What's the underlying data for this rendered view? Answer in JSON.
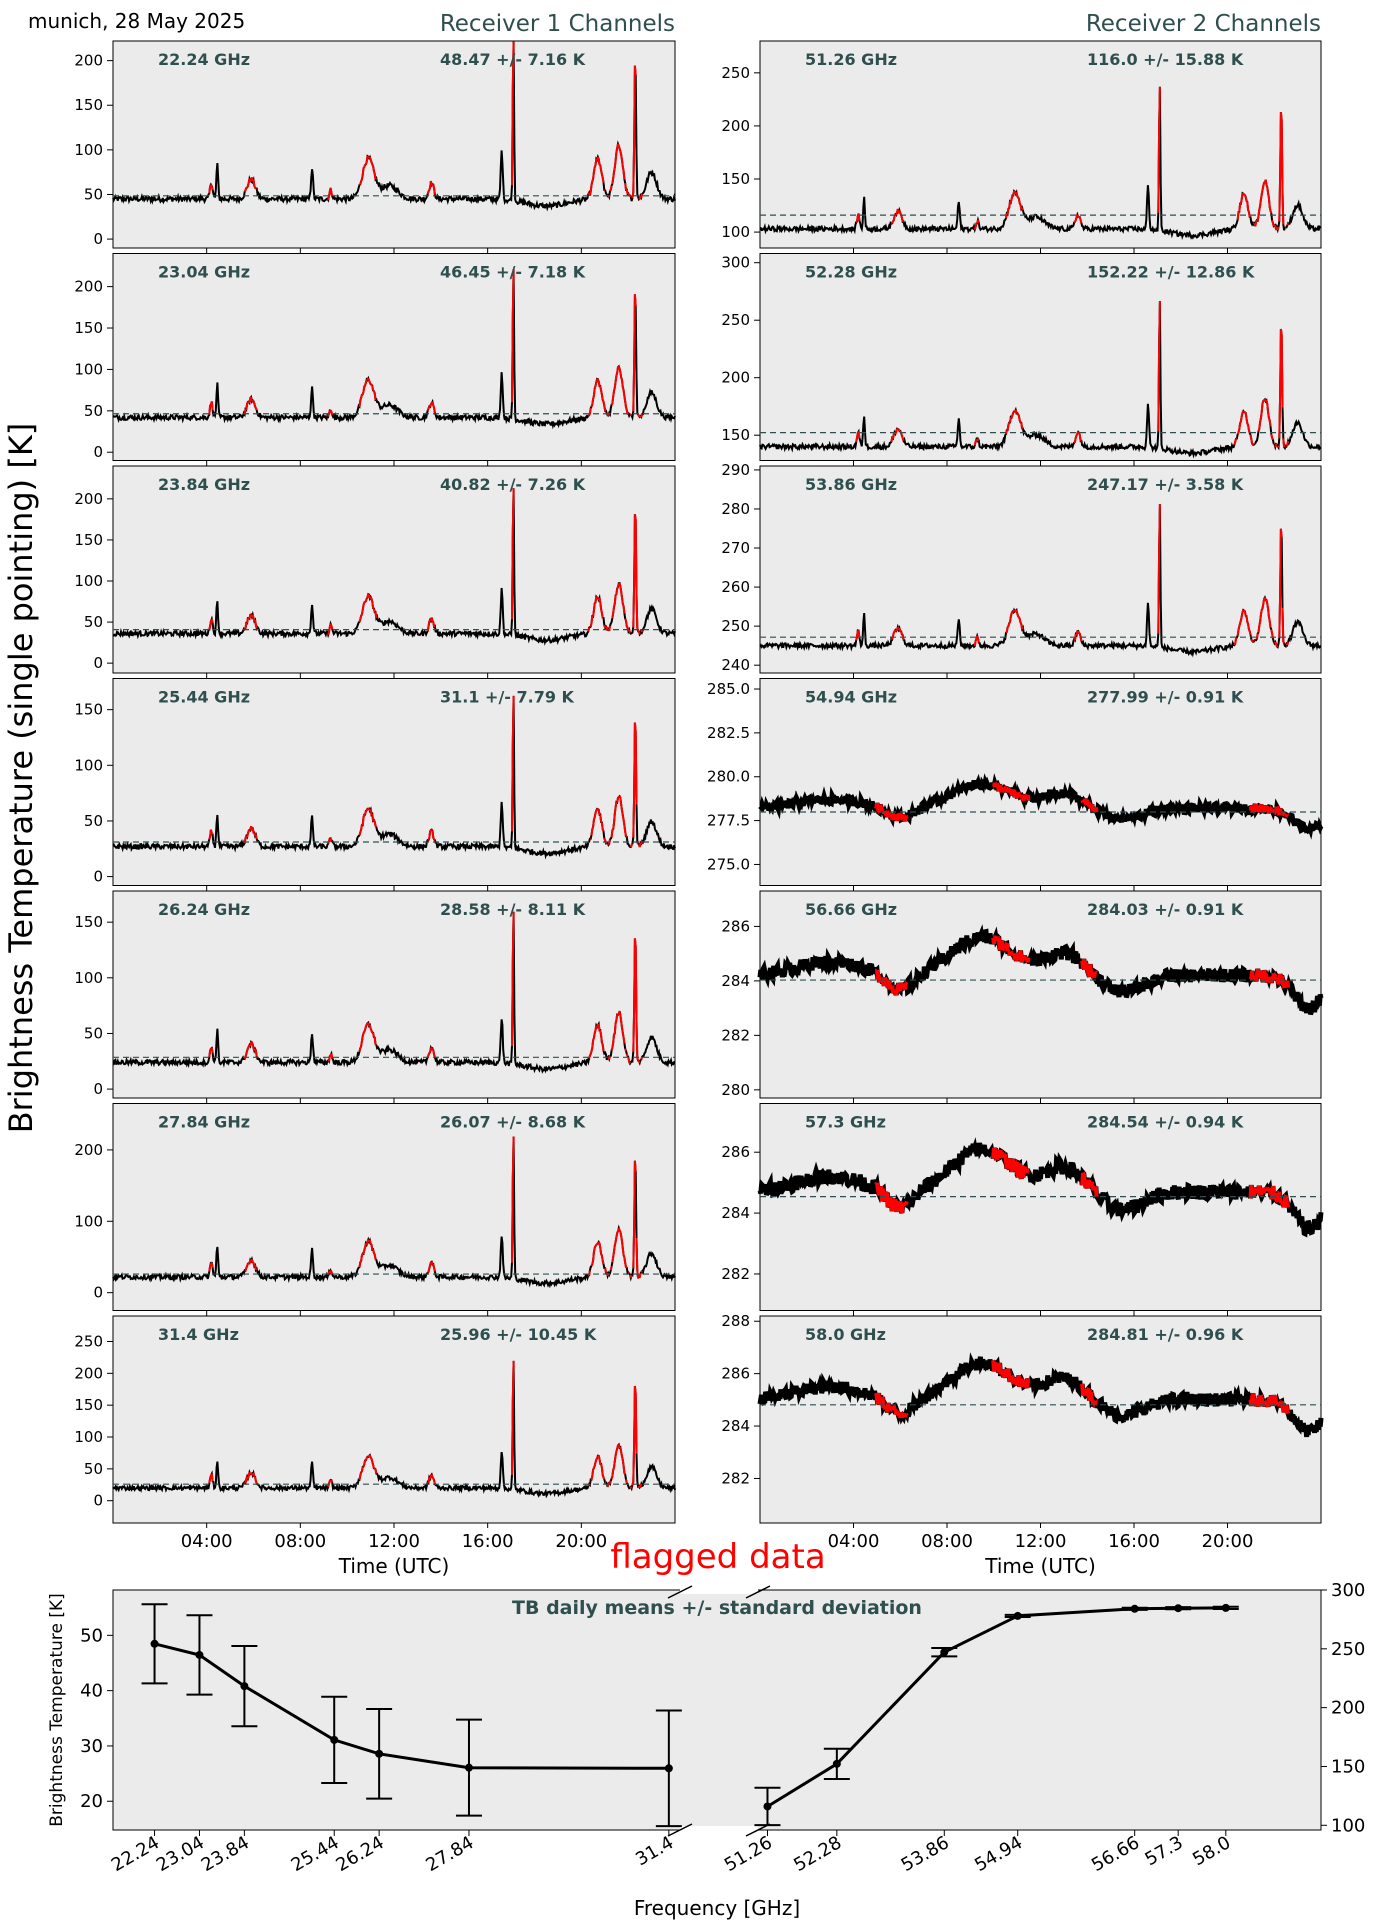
{
  "header": {
    "location_date": "munich, 28 May 2025",
    "receiver1_title": "Receiver 1 Channels",
    "receiver2_title": "Receiver 2 Channels",
    "ylabel": "Brightness Temperature (single pointing) [K]",
    "flagged_label": "flagged data"
  },
  "colors": {
    "panel_bg": "#ebebeb",
    "trace": "#000000",
    "flagged": "#ff0000",
    "annotation": "#2f4f4f",
    "mean_line": "#2f4f4f",
    "flagged_title": "#ff0000"
  },
  "chart_data": [
    {
      "type": "line",
      "title": "Receiver 1 Channels",
      "xlabel": "Time (UTC)",
      "x_ticks": [
        "04:00",
        "08:00",
        "12:00",
        "16:00",
        "20:00"
      ],
      "xlim_hours": [
        0,
        24
      ],
      "series": [
        {
          "name": "22.24 GHz",
          "annotation": "48.47 +/- 7.16 K",
          "mean": 48.47,
          "ylim": [
            -10,
            222
          ],
          "yticks": [
            "0",
            "50",
            "100",
            "150",
            "200"
          ],
          "ytick_values": [
            0,
            50,
            100,
            150,
            200
          ],
          "baseline": 45,
          "peak_scale": 1.0
        },
        {
          "name": "23.04 GHz",
          "annotation": "46.45 +/- 7.18 K",
          "mean": 46.45,
          "ylim": [
            -10,
            240
          ],
          "yticks": [
            "0",
            "50",
            "100",
            "150",
            "200"
          ],
          "ytick_values": [
            0,
            50,
            100,
            150,
            200
          ],
          "baseline": 42,
          "peak_scale": 1.0
        },
        {
          "name": "23.84 GHz",
          "annotation": "40.82 +/- 7.26 K",
          "mean": 40.82,
          "ylim": [
            -12,
            240
          ],
          "yticks": [
            "0",
            "50",
            "100",
            "150",
            "200"
          ],
          "ytick_values": [
            0,
            50,
            100,
            150,
            200
          ],
          "baseline": 36,
          "peak_scale": 1.0
        },
        {
          "name": "25.44 GHz",
          "annotation": "31.1 +/- 7.79 K",
          "mean": 31.1,
          "ylim": [
            -8,
            178
          ],
          "yticks": [
            "0",
            "50",
            "100",
            "150"
          ],
          "ytick_values": [
            0,
            50,
            100,
            150
          ],
          "baseline": 27,
          "peak_scale": 0.75
        },
        {
          "name": "26.24 GHz",
          "annotation": "28.58 +/- 8.11 K",
          "mean": 28.58,
          "ylim": [
            -8,
            178
          ],
          "yticks": [
            "0",
            "50",
            "100",
            "150"
          ],
          "ytick_values": [
            0,
            50,
            100,
            150
          ],
          "baseline": 24,
          "peak_scale": 0.75
        },
        {
          "name": "27.84 GHz",
          "annotation": "26.07 +/- 8.68 K",
          "mean": 26.07,
          "ylim": [
            -25,
            265
          ],
          "yticks": [
            "0",
            "100",
            "200"
          ],
          "ytick_values": [
            0,
            100,
            200
          ],
          "baseline": 22,
          "peak_scale": 1.1
        },
        {
          "name": "31.4 GHz",
          "annotation": "25.96 +/- 10.45 K",
          "mean": 25.96,
          "ylim": [
            -35,
            290
          ],
          "yticks": [
            "0",
            "50",
            "100",
            "150",
            "200",
            "250"
          ],
          "ytick_values": [
            0,
            50,
            100,
            150,
            200,
            250
          ],
          "baseline": 20,
          "peak_scale": 1.1
        }
      ]
    },
    {
      "type": "line",
      "title": "Receiver 2 Channels",
      "xlabel": "Time (UTC)",
      "x_ticks": [
        "04:00",
        "08:00",
        "12:00",
        "16:00",
        "20:00"
      ],
      "xlim_hours": [
        0,
        24
      ],
      "series": [
        {
          "name": "51.26 GHz",
          "annotation": "116.0 +/- 15.88 K",
          "mean": 116.0,
          "ylim": [
            85,
            280
          ],
          "yticks": [
            "100",
            "150",
            "200",
            "250"
          ],
          "ytick_values": [
            100,
            150,
            200,
            250
          ],
          "baseline": 103,
          "peak_scale": 0.75
        },
        {
          "name": "52.28 GHz",
          "annotation": "152.22 +/- 12.86 K",
          "mean": 152.22,
          "ylim": [
            128,
            308
          ],
          "yticks": [
            "150",
            "200",
            "250",
            "300"
          ],
          "ytick_values": [
            150,
            200,
            250,
            300
          ],
          "baseline": 140,
          "peak_scale": 0.7
        },
        {
          "name": "53.86 GHz",
          "annotation": "247.17 +/- 3.58 K",
          "mean": 247.17,
          "ylim": [
            238,
            291
          ],
          "yticks": [
            "240",
            "250",
            "260",
            "270",
            "280",
            "290"
          ],
          "ytick_values": [
            240,
            250,
            260,
            270,
            280,
            290
          ],
          "baseline": 245,
          "peak_scale": 0.2
        },
        {
          "name": "54.94 GHz",
          "annotation": "277.99 +/- 0.91 K",
          "mean": 277.99,
          "ylim": [
            273.8,
            285.6
          ],
          "yticks": [
            "275.0",
            "277.5",
            "280.0",
            "282.5",
            "285.0"
          ],
          "ytick_values": [
            275,
            277.5,
            280,
            282.5,
            285
          ],
          "baseline": 278.2,
          "peak_scale": 0.035
        },
        {
          "name": "56.66 GHz",
          "annotation": "284.03 +/- 0.91 K",
          "mean": 284.03,
          "ylim": [
            279.7,
            287.3
          ],
          "yticks": [
            "280",
            "282",
            "284",
            "286"
          ],
          "ytick_values": [
            280,
            282,
            284,
            286
          ],
          "baseline": 284.2,
          "peak_scale": 0.01
        },
        {
          "name": "57.3 GHz",
          "annotation": "284.54 +/- 0.94 K",
          "mean": 284.54,
          "ylim": [
            280.8,
            287.6
          ],
          "yticks": [
            "282",
            "284",
            "286"
          ],
          "ytick_values": [
            282,
            284,
            286
          ],
          "baseline": 284.7,
          "peak_scale": 0.01
        },
        {
          "name": "58.0 GHz",
          "annotation": "284.81 +/- 0.96 K",
          "mean": 284.81,
          "ylim": [
            280.3,
            288.2
          ],
          "yticks": [
            "282",
            "284",
            "286",
            "288"
          ],
          "ytick_values": [
            282,
            284,
            286,
            288
          ],
          "baseline": 285.0,
          "peak_scale": 0.01
        }
      ]
    },
    {
      "type": "line",
      "title": "TB daily means +/- standard deviation",
      "xlabel": "Frequency [GHz]",
      "ylabel_left": "Brightness Temperature [K]",
      "left": {
        "ylim": [
          14.8,
          58.2
        ],
        "yticks": [
          "20",
          "30",
          "40",
          "50"
        ],
        "ytick_values": [
          20,
          30,
          40,
          50
        ],
        "x": [
          22.24,
          23.04,
          23.84,
          25.44,
          26.24,
          27.84,
          31.4
        ],
        "x_labels": [
          "22.24",
          "23.04",
          "23.84",
          "25.44",
          "26.24",
          "27.84",
          "31.4"
        ],
        "y": [
          48.47,
          46.45,
          40.82,
          31.1,
          28.58,
          26.07,
          25.96
        ],
        "err": [
          7.16,
          7.18,
          7.26,
          7.79,
          8.11,
          8.68,
          10.45
        ]
      },
      "right": {
        "ylim": [
          96,
          300
        ],
        "yticks": [
          "100",
          "150",
          "200",
          "250",
          "300"
        ],
        "ytick_values": [
          100,
          150,
          200,
          250,
          300
        ],
        "x": [
          51.26,
          52.28,
          53.86,
          54.94,
          56.66,
          57.3,
          58.0
        ],
        "x_labels": [
          "51.26",
          "52.28",
          "53.86",
          "54.94",
          "56.66",
          "57.3",
          "58.0"
        ],
        "y": [
          116.0,
          152.22,
          247.17,
          277.99,
          284.03,
          284.54,
          284.81
        ],
        "err": [
          15.88,
          12.86,
          3.58,
          0.91,
          0.91,
          0.94,
          0.96
        ]
      }
    }
  ]
}
